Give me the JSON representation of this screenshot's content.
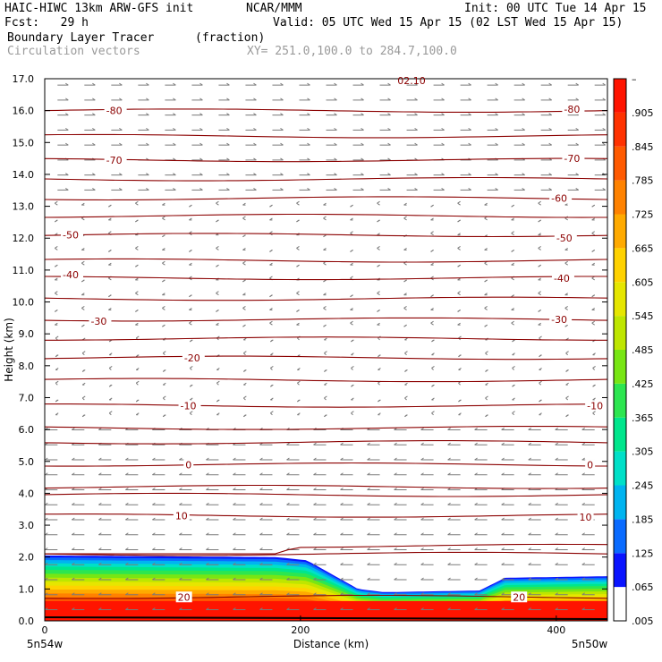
{
  "header": {
    "model": "HAIC-HIWC 13km ARW-GFS init",
    "org": "NCAR/MMM",
    "init": "Init: 00 UTC Tue 14 Apr 15",
    "fcst": "Fcst:   29 h",
    "valid": "Valid: 05 UTC Wed 15 Apr 15 (02 LST Wed 15 Apr 15)",
    "field": "Boundary Layer Tracer",
    "units": "(fraction)",
    "vectors": "Circulation vectors",
    "xy": "XY= 251.0,100.0 to 284.7,100.0"
  },
  "chart_data": {
    "type": "heatmap",
    "title": "Boundary Layer Tracer",
    "xlabel": "Distance (km)",
    "ylabel": "Height (km)",
    "xlim": [
      0,
      440
    ],
    "ylim": [
      0,
      17
    ],
    "x_ticks": [
      "0",
      "200",
      "400"
    ],
    "y_ticks": [
      "0.0",
      "1.0",
      "2.0",
      "3.0",
      "4.0",
      "5.0",
      "6.0",
      "7.0",
      "8.0",
      "9.0",
      "10.0",
      "11.0",
      "12.0",
      "13.0",
      "14.0",
      "15.0",
      "16.0",
      "17.0"
    ],
    "x_endpoints": [
      "5n54w",
      "5n50w"
    ],
    "colorbar_labels": [
      "–",
      ".905",
      ".845",
      ".785",
      ".725",
      ".665",
      ".605",
      ".545",
      ".485",
      ".425",
      ".365",
      ".305",
      ".245",
      ".185",
      ".125",
      ".065",
      ".005"
    ],
    "contour_labels": [
      {
        "text": "-80",
        "x": 48,
        "y": 16.0
      },
      {
        "text": "-80",
        "x": 406,
        "y": 16.05
      },
      {
        "text": "-70",
        "x": 48,
        "y": 14.45
      },
      {
        "text": "-70",
        "x": 406,
        "y": 14.5
      },
      {
        "text": "-60",
        "x": 396,
        "y": 13.25
      },
      {
        "text": "-50",
        "x": 14,
        "y": 12.1
      },
      {
        "text": "-50",
        "x": 400,
        "y": 12.0
      },
      {
        "text": "-40",
        "x": 14,
        "y": 10.85
      },
      {
        "text": "-40",
        "x": 398,
        "y": 10.75
      },
      {
        "text": "-30",
        "x": 36,
        "y": 9.4
      },
      {
        "text": "-30",
        "x": 396,
        "y": 9.45
      },
      {
        "text": "-20",
        "x": 109,
        "y": 8.25
      },
      {
        "text": "-10",
        "x": 106,
        "y": 6.75
      },
      {
        "text": "-10",
        "x": 424,
        "y": 6.75
      },
      {
        "text": "0",
        "x": 110,
        "y": 4.9
      },
      {
        "text": "0",
        "x": 424,
        "y": 4.9
      },
      {
        "text": "10",
        "x": 102,
        "y": 3.3
      },
      {
        "text": "10",
        "x": 418,
        "y": 3.25
      },
      {
        "text": "20",
        "x": 104,
        "y": 0.75
      },
      {
        "text": "20",
        "x": 366,
        "y": 0.75
      }
    ],
    "top_label": "02.10",
    "contour_levels_height_km": [
      16.0,
      15.2,
      14.45,
      13.85,
      13.25,
      12.7,
      12.1,
      11.3,
      10.75,
      10.1,
      9.45,
      8.85,
      8.25,
      7.55,
      6.75,
      6.05,
      5.6,
      4.9,
      4.2,
      3.95,
      3.3,
      2.35,
      2.1,
      0.75
    ],
    "tracer_layer_top_km": [
      {
        "x": 0,
        "top": 2.05
      },
      {
        "x": 180,
        "top": 2.0
      },
      {
        "x": 205,
        "top": 1.9
      },
      {
        "x": 225,
        "top": 1.45
      },
      {
        "x": 245,
        "top": 1.0
      },
      {
        "x": 265,
        "top": 0.9
      },
      {
        "x": 340,
        "top": 0.95
      },
      {
        "x": 360,
        "top": 1.35
      },
      {
        "x": 440,
        "top": 1.4
      }
    ],
    "colorbar_colors": [
      "#ffffff",
      "#0a14ff",
      "#0a6bff",
      "#00b4f0",
      "#00e0c8",
      "#00e68c",
      "#2de650",
      "#78e614",
      "#bee600",
      "#e6e600",
      "#ffd200",
      "#ffaa00",
      "#ff8200",
      "#ff5a00",
      "#ff3200",
      "#ff1400"
    ],
    "grid": false
  }
}
